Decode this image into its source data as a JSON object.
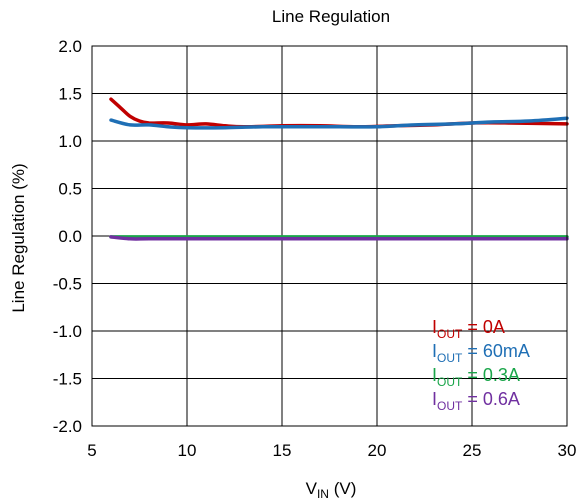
{
  "chart_data": {
    "type": "line",
    "title": "Line Regulation",
    "xlabel": {
      "main": "V",
      "sub": "IN",
      "suffix": " (V)"
    },
    "ylabel": "Line Regulation (%)",
    "xlim": [
      5,
      30
    ],
    "ylim": [
      -2.0,
      2.0
    ],
    "grid": true,
    "legend_position": "bottom-right",
    "x_ticks": [
      "5",
      "10",
      "15",
      "20",
      "25",
      "30"
    ],
    "y_ticks": [
      "2.0",
      "1.5",
      "1.0",
      "0.5",
      "0.0",
      "-0.5",
      "-1.0",
      "-1.5",
      "-2.0"
    ],
    "series": [
      {
        "legend_main": "I",
        "legend_sub": "OUT",
        "legend_value": " = 0A",
        "color": "#c00000",
        "x": [
          6,
          6.5,
          7,
          7.5,
          8,
          9,
          10,
          11,
          12,
          13,
          15,
          17,
          19,
          21,
          23,
          25,
          27,
          30
        ],
        "y": [
          1.44,
          1.35,
          1.26,
          1.21,
          1.19,
          1.19,
          1.17,
          1.18,
          1.16,
          1.15,
          1.16,
          1.16,
          1.15,
          1.16,
          1.17,
          1.19,
          1.19,
          1.18
        ]
      },
      {
        "legend_main": "I",
        "legend_sub": "OUT",
        "legend_value": " = 60mA",
        "color": "#1f6fb5",
        "x": [
          6,
          7,
          8,
          9,
          10,
          12,
          14,
          16,
          18,
          20,
          22,
          24,
          26,
          28,
          30
        ],
        "y": [
          1.22,
          1.17,
          1.17,
          1.15,
          1.14,
          1.14,
          1.15,
          1.15,
          1.15,
          1.15,
          1.17,
          1.18,
          1.2,
          1.21,
          1.24
        ]
      },
      {
        "legend_main": "I",
        "legend_sub": "OUT",
        "legend_value": " = 0.3A",
        "color": "#1aa64a",
        "x": [
          6,
          10,
          15,
          20,
          25,
          30
        ],
        "y": [
          -0.01,
          -0.01,
          -0.01,
          -0.01,
          -0.01,
          -0.01
        ]
      },
      {
        "legend_main": "I",
        "legend_sub": "OUT",
        "legend_value": " = 0.6A",
        "color": "#7030a0",
        "x": [
          6,
          7,
          8,
          10,
          15,
          20,
          25,
          30
        ],
        "y": [
          -0.01,
          -0.03,
          -0.03,
          -0.03,
          -0.03,
          -0.03,
          -0.03,
          -0.03
        ]
      }
    ]
  }
}
